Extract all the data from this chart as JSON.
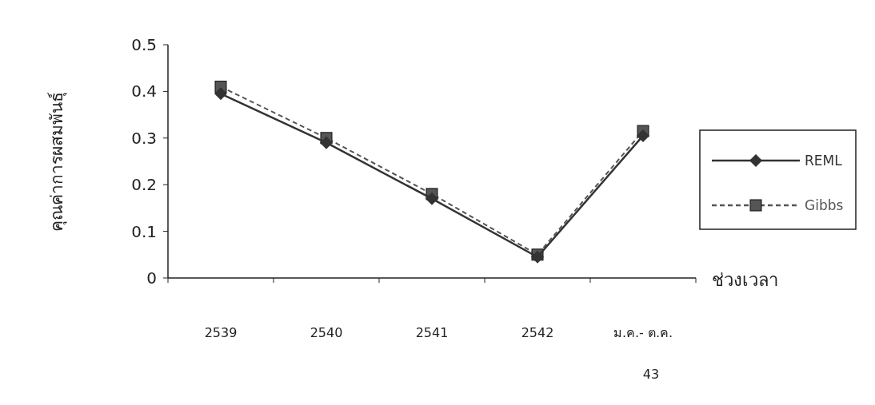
{
  "chart_data": {
    "type": "line",
    "xlabel": "ช่วงเวลา",
    "ylabel": "คุณค่าการผสมพันธุ์",
    "categories": [
      "2539",
      "2540",
      "2541",
      "2542",
      "ม.ค.- ต.ค.\n43"
    ],
    "series": [
      {
        "name": "REML",
        "color": "#333333",
        "marker": "diamond",
        "line_style": "solid",
        "values": [
          0.395,
          0.29,
          0.17,
          0.045,
          0.305
        ]
      },
      {
        "name": "Gibbs",
        "color": "#555555",
        "marker": "square",
        "line_style": "dashed",
        "values": [
          0.41,
          0.3,
          0.18,
          0.05,
          0.315
        ]
      }
    ],
    "ylim": [
      0,
      0.5
    ],
    "yticks": [
      0,
      0.1,
      0.2,
      0.3,
      0.4,
      0.5
    ],
    "grid": false,
    "legend": "right"
  }
}
